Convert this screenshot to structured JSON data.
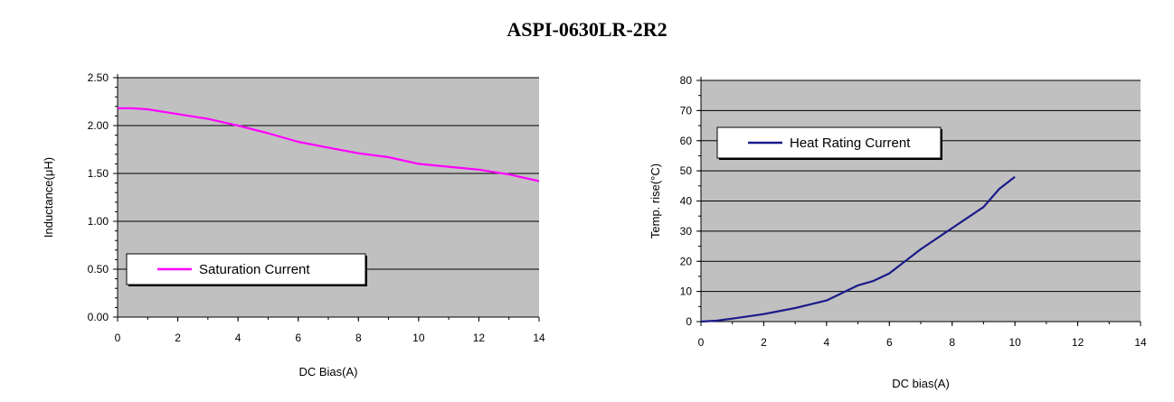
{
  "page": {
    "title": "ASPI-0630LR-2R2"
  },
  "chart_data": [
    {
      "type": "line",
      "xlabel": "DC Bias(A)",
      "ylabel": "Inductance(μH)",
      "xlim": [
        0,
        14
      ],
      "ylim": [
        0,
        2.5
      ],
      "xticks": [
        "0",
        "2",
        "4",
        "6",
        "8",
        "10",
        "12",
        "14"
      ],
      "yticks": [
        "0.00",
        "0.50",
        "1.00",
        "1.50",
        "2.00",
        "2.50"
      ],
      "grid": true,
      "legend_position": "lower-left",
      "plot_bg": "#c0c0c0",
      "series": [
        {
          "name": "Saturation Current",
          "color": "#ff00ff",
          "x": [
            0,
            0.5,
            1,
            2,
            3,
            4,
            5,
            6,
            7,
            8,
            9,
            10,
            11,
            12,
            13,
            14
          ],
          "y": [
            2.18,
            2.18,
            2.17,
            2.12,
            2.07,
            2.0,
            1.92,
            1.83,
            1.77,
            1.71,
            1.67,
            1.6,
            1.57,
            1.54,
            1.49,
            1.42
          ]
        }
      ]
    },
    {
      "type": "line",
      "xlabel": "DC bias(A)",
      "ylabel": "Temp. rise(°C)",
      "xlim": [
        0,
        14
      ],
      "ylim": [
        0,
        80
      ],
      "xticks": [
        "0",
        "2",
        "4",
        "6",
        "8",
        "10",
        "12",
        "14"
      ],
      "yticks": [
        "0",
        "10",
        "20",
        "30",
        "40",
        "50",
        "60",
        "70",
        "80"
      ],
      "grid": true,
      "legend_position": "top-left",
      "plot_bg": "#c0c0c0",
      "series": [
        {
          "name": "Heat Rating Current",
          "color": "#1a1a8a",
          "x": [
            0,
            0.5,
            1,
            2,
            3,
            4,
            5,
            5.5,
            6,
            7,
            8,
            9,
            9.5,
            10
          ],
          "y": [
            0,
            0.3,
            1,
            2.5,
            4.5,
            7,
            12,
            13.5,
            16,
            24,
            31,
            38,
            44,
            48
          ]
        }
      ]
    }
  ]
}
